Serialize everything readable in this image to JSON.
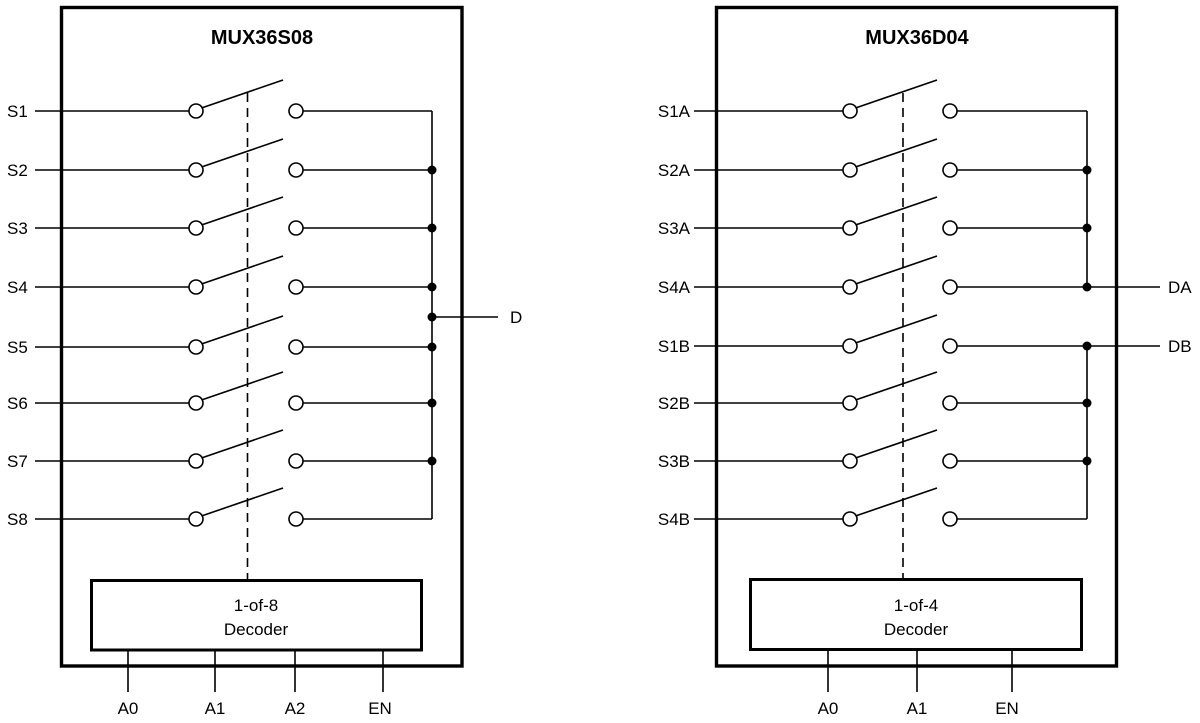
{
  "diagram": {
    "left_block": {
      "title": "MUX36S08",
      "inputs": [
        "S1",
        "S2",
        "S3",
        "S4",
        "S5",
        "S6",
        "S7",
        "S8"
      ],
      "output_label": "D",
      "decoder_line1": "1-of-8",
      "decoder_line2": "Decoder",
      "controls": [
        "A0",
        "A1",
        "A2",
        "EN"
      ]
    },
    "right_block": {
      "title": "MUX36D04",
      "inputs": [
        "S1A",
        "S2A",
        "S3A",
        "S4A",
        "S1B",
        "S2B",
        "S3B",
        "S4B"
      ],
      "output_a_label": "DA",
      "output_b_label": "DB",
      "decoder_line1": "1-of-4",
      "decoder_line2": "Decoder",
      "controls": [
        "A0",
        "A1",
        "EN"
      ]
    },
    "colors": {
      "line": "#000000",
      "text": "#000000",
      "background": "#ffffff"
    }
  }
}
